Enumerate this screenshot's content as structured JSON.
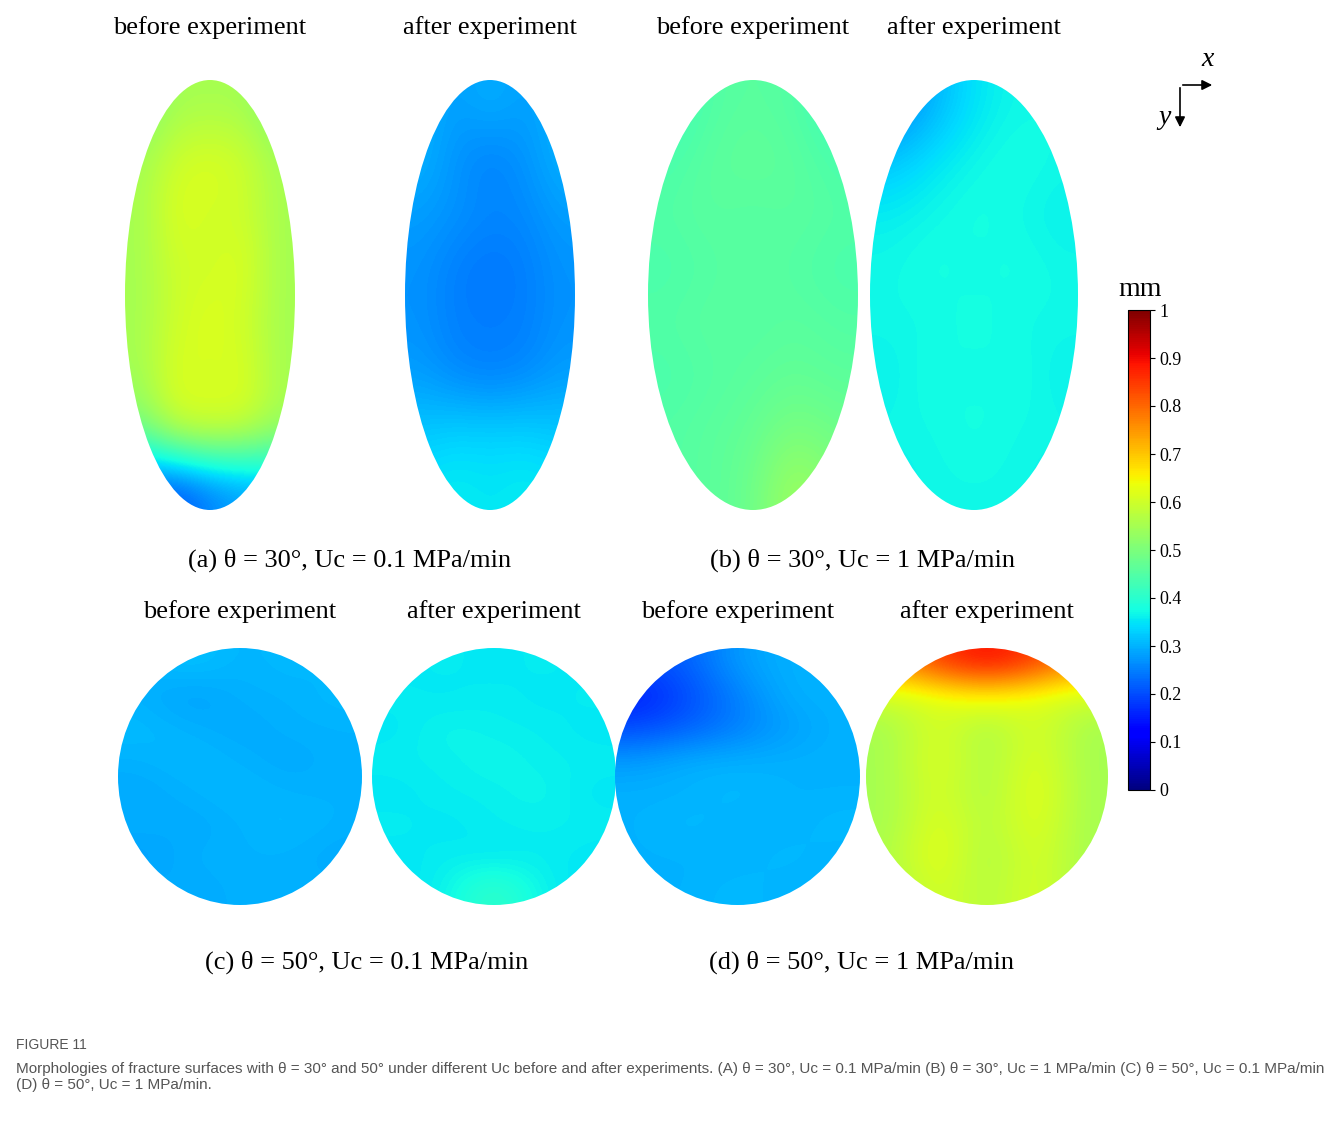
{
  "chart_data": {
    "type": "heatmap",
    "figure_label": "FIGURE 11",
    "caption": "Morphologies of fracture surfaces with θ = 30° and 50° under different Uc before and after experiments. (A) θ = 30°, Uc = 0.1 MPa/min (B) θ = 30°, Uc = 1 MPa/min (C) θ = 50°, Uc = 0.1 MPa/min (D) θ = 50°, Uc = 1 MPa/min.",
    "map_titles": [
      "before experiment",
      "after experiment"
    ],
    "axis_names": [
      "x",
      "y"
    ],
    "colorbar": {
      "label": "mm",
      "range": [
        0,
        1
      ],
      "ticks": [
        0,
        0.1,
        0.2,
        0.3,
        0.4,
        0.5,
        0.6,
        0.7,
        0.8,
        0.9,
        1
      ]
    },
    "panels": [
      {
        "caption": "(a) θ = 30°, Uc = 0.1 MPa/min",
        "before": [
          [
            0.5,
            0.55,
            0.55,
            0.55,
            0.5
          ],
          [
            0.55,
            0.6,
            0.62,
            0.6,
            0.55
          ],
          [
            0.55,
            0.62,
            0.6,
            0.6,
            0.55
          ],
          [
            0.55,
            0.6,
            0.6,
            0.62,
            0.55
          ],
          [
            0.55,
            0.6,
            0.62,
            0.6,
            0.55
          ],
          [
            0.55,
            0.62,
            0.6,
            0.62,
            0.55
          ],
          [
            0.5,
            0.6,
            0.62,
            0.6,
            0.55
          ],
          [
            0.22,
            0.2,
            0.25,
            0.28,
            0.3
          ]
        ],
        "after": [
          [
            0.3,
            0.28,
            0.3,
            0.28,
            0.3
          ],
          [
            0.3,
            0.27,
            0.25,
            0.27,
            0.3
          ],
          [
            0.28,
            0.27,
            0.26,
            0.26,
            0.28
          ],
          [
            0.27,
            0.25,
            0.24,
            0.25,
            0.27
          ],
          [
            0.27,
            0.25,
            0.25,
            0.25,
            0.27
          ],
          [
            0.28,
            0.26,
            0.25,
            0.26,
            0.28
          ],
          [
            0.32,
            0.33,
            0.33,
            0.33,
            0.32
          ],
          [
            0.35,
            0.36,
            0.35,
            0.36,
            0.35
          ]
        ]
      },
      {
        "caption": "(b) θ = 30°, Uc = 1 MPa/min",
        "before": [
          [
            0.42,
            0.45,
            0.46,
            0.45,
            0.42
          ],
          [
            0.44,
            0.46,
            0.47,
            0.46,
            0.44
          ],
          [
            0.45,
            0.46,
            0.45,
            0.46,
            0.45
          ],
          [
            0.44,
            0.45,
            0.46,
            0.45,
            0.44
          ],
          [
            0.45,
            0.46,
            0.45,
            0.46,
            0.45
          ],
          [
            0.44,
            0.45,
            0.46,
            0.47,
            0.46
          ],
          [
            0.45,
            0.46,
            0.47,
            0.5,
            0.48
          ],
          [
            0.45,
            0.46,
            0.48,
            0.55,
            0.5
          ]
        ],
        "after": [
          [
            0.25,
            0.3,
            0.35,
            0.37,
            0.37
          ],
          [
            0.32,
            0.35,
            0.37,
            0.38,
            0.37
          ],
          [
            0.36,
            0.37,
            0.38,
            0.37,
            0.36
          ],
          [
            0.37,
            0.38,
            0.37,
            0.38,
            0.37
          ],
          [
            0.37,
            0.37,
            0.38,
            0.37,
            0.37
          ],
          [
            0.36,
            0.38,
            0.37,
            0.38,
            0.36
          ],
          [
            0.37,
            0.37,
            0.38,
            0.37,
            0.37
          ],
          [
            0.36,
            0.37,
            0.37,
            0.37,
            0.36
          ]
        ]
      },
      {
        "caption": "(c) θ = 50°, Uc = 0.1 MPa/min",
        "before": [
          [
            0.3,
            0.32,
            0.3,
            0.31,
            0.3
          ],
          [
            0.3,
            0.28,
            0.3,
            0.3,
            0.31
          ],
          [
            0.31,
            0.3,
            0.29,
            0.3,
            0.3
          ],
          [
            0.3,
            0.31,
            0.3,
            0.29,
            0.3
          ],
          [
            0.29,
            0.3,
            0.31,
            0.3,
            0.3
          ],
          [
            0.3,
            0.29,
            0.3,
            0.31,
            0.3
          ],
          [
            0.28,
            0.3,
            0.3,
            0.3,
            0.29
          ],
          [
            0.3,
            0.29,
            0.3,
            0.3,
            0.3
          ]
        ],
        "after": [
          [
            0.35,
            0.36,
            0.35,
            0.36,
            0.35
          ],
          [
            0.36,
            0.35,
            0.36,
            0.35,
            0.36
          ],
          [
            0.35,
            0.37,
            0.36,
            0.36,
            0.35
          ],
          [
            0.36,
            0.36,
            0.37,
            0.36,
            0.36
          ],
          [
            0.35,
            0.36,
            0.36,
            0.37,
            0.35
          ],
          [
            0.36,
            0.35,
            0.36,
            0.36,
            0.36
          ],
          [
            0.35,
            0.36,
            0.35,
            0.36,
            0.35
          ],
          [
            0.35,
            0.36,
            0.42,
            0.36,
            0.35
          ]
        ]
      },
      {
        "caption": "(d) θ = 50°, Uc = 1 MPa/min",
        "before": [
          [
            0.2,
            0.22,
            0.28,
            0.3,
            0.3
          ],
          [
            0.15,
            0.2,
            0.25,
            0.3,
            0.3
          ],
          [
            0.2,
            0.22,
            0.25,
            0.28,
            0.3
          ],
          [
            0.28,
            0.3,
            0.3,
            0.3,
            0.3
          ],
          [
            0.3,
            0.3,
            0.31,
            0.3,
            0.3
          ],
          [
            0.3,
            0.31,
            0.3,
            0.3,
            0.31
          ],
          [
            0.3,
            0.3,
            0.3,
            0.31,
            0.3
          ],
          [
            0.3,
            0.3,
            0.31,
            0.3,
            0.3
          ]
        ],
        "after": [
          [
            0.75,
            0.85,
            0.9,
            0.85,
            0.75
          ],
          [
            0.6,
            0.62,
            0.65,
            0.62,
            0.6
          ],
          [
            0.55,
            0.62,
            0.55,
            0.62,
            0.55
          ],
          [
            0.55,
            0.63,
            0.55,
            0.63,
            0.55
          ],
          [
            0.55,
            0.62,
            0.55,
            0.64,
            0.55
          ],
          [
            0.55,
            0.63,
            0.56,
            0.63,
            0.55
          ],
          [
            0.56,
            0.64,
            0.55,
            0.62,
            0.55
          ],
          [
            0.55,
            0.62,
            0.56,
            0.62,
            0.55
          ]
        ]
      }
    ]
  }
}
